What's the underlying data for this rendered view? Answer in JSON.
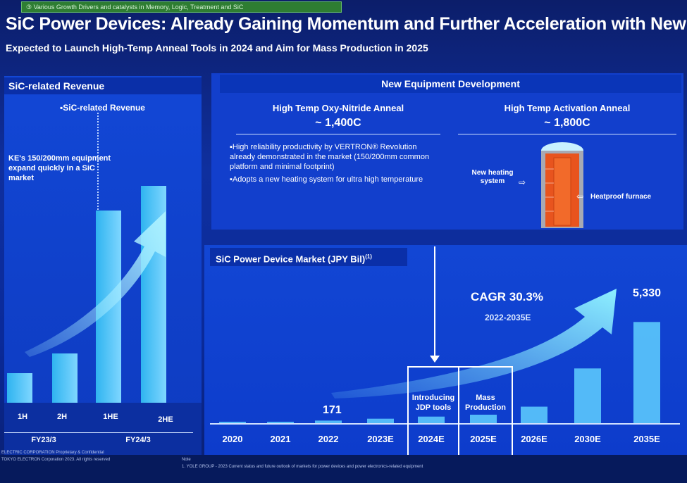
{
  "banner": "③ Various Growth Drivers and catalysts in Memory, Logic, Treatment and SiC",
  "title": "SiC Power Devices: Already Gaining Momentum and Further Acceleration with New Tool",
  "subtitle": "Expected to Launch High-Temp Anneal Tools in 2024 and Aim for Mass Production in 2025",
  "left": {
    "header": "SiC-related Revenue",
    "legend": "SiC-related Revenue",
    "note": "KE's 150/200mm equipment expand quickly in a SiC market",
    "periods": [
      "1H",
      "2H",
      "1HE",
      "2HE"
    ],
    "years": [
      "FY23/3",
      "FY24/3"
    ],
    "bars": [
      0.12,
      0.2,
      0.78,
      0.88
    ]
  },
  "equipment": {
    "header": "New Equipment Development",
    "oxy_title": "High Temp  Oxy-Nitride Anneal",
    "oxy_temp": "~ 1,400C",
    "act_title": "High Temp Activation Anneal",
    "act_temp": "~ 1,800C",
    "bullet1": "High reliability productivity by VERTRON® Revolution already demonstrated in the market (150/200mm common platform and minimal footprint)",
    "bullet2": "Adopts a new heating system for ultra high temperature",
    "label_heating": "New heating system",
    "label_furnace": "Heatproof furnace"
  },
  "market": {
    "header": "SiC Power Device Market (JPY Bil)",
    "header_sup": "(1)",
    "cagr": "CAGR 30.3%",
    "cagr_range": "2022-2035E",
    "value_2022": "171",
    "value_2035": "5,330",
    "box1": "Introducing JDP tools",
    "box2": "Mass Production"
  },
  "chart_data": {
    "type": "bar",
    "title": "SiC Power Device Market (JPY Bil)",
    "categories": [
      "2020",
      "2021",
      "2022",
      "2023E",
      "2024E",
      "2025E",
      "2026E",
      "2030E",
      "2035E"
    ],
    "values": [
      60,
      110,
      171,
      270,
      380,
      480,
      900,
      2900,
      5330
    ],
    "labeled": {
      "2022": "171",
      "2035E": "5,330"
    },
    "ylim": [
      0,
      5600
    ]
  },
  "footer": {
    "left1": "ELECTRIC CORPORATION Proprietary & Confidential",
    "left2": "TOKYO ELECTRON Corporation 2023. All rights reserved",
    "note_label": "Note",
    "note": "1. YOLE GROUP - 2023 Current status and future outlook of markets for power devices and power electronics-related equipment"
  },
  "colors": {
    "bg": "#0f2f9e",
    "bar": "#5fd0ff",
    "banner": "#2e7d32"
  }
}
